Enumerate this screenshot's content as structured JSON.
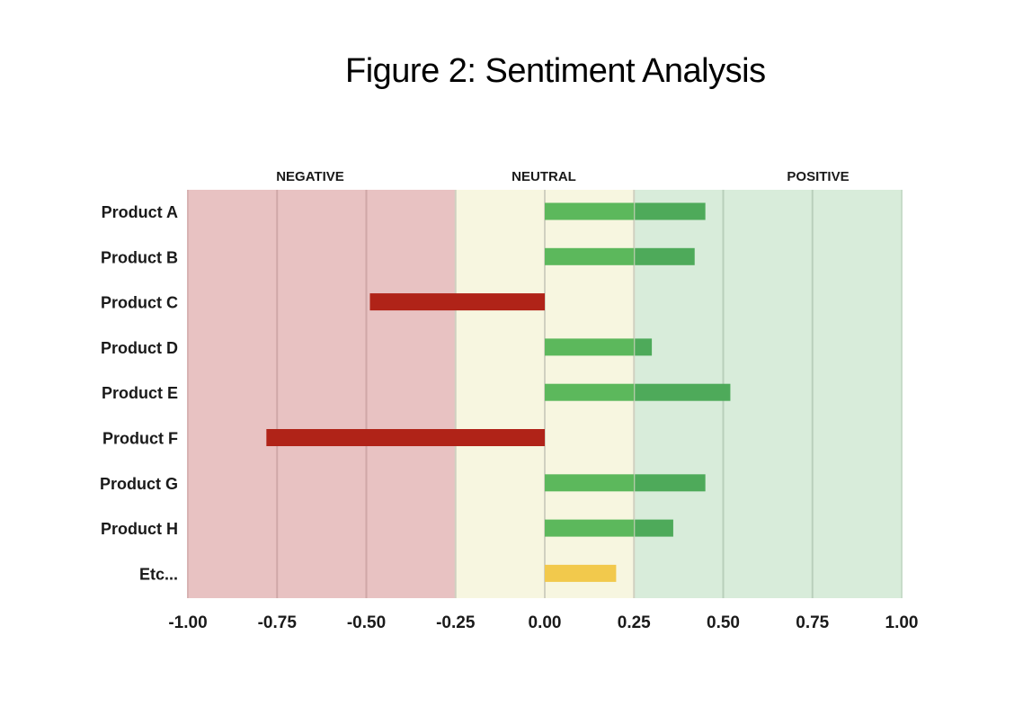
{
  "title": "Figure 2: Sentiment Analysis",
  "chart_data": {
    "type": "bar",
    "orientation": "horizontal",
    "title": "Figure 2: Sentiment Analysis",
    "xlabel": "",
    "ylabel": "",
    "xlim": [
      -1.0,
      1.0
    ],
    "x_ticks": [
      "-1.00",
      "-0.75",
      "-0.50",
      "-0.25",
      "0.00",
      "0.25",
      "0.50",
      "0.75",
      "1.00"
    ],
    "x_tick_values": [
      -1.0,
      -0.75,
      -0.5,
      -0.25,
      0.0,
      0.25,
      0.5,
      0.75,
      1.0
    ],
    "regions": [
      {
        "label": "NEGATIVE",
        "from": -1.0,
        "to": -0.25,
        "color": "#e8c2c2"
      },
      {
        "label": "NEUTRAL",
        "from": -0.25,
        "to": 0.25,
        "color": "#f7f6e0"
      },
      {
        "label": "POSITIVE",
        "from": 0.25,
        "to": 1.0,
        "color": "#d8ecda"
      }
    ],
    "categories": [
      "Product A",
      "Product B",
      "Product C",
      "Product D",
      "Product E",
      "Product F",
      "Product G",
      "Product H",
      "Etc..."
    ],
    "values": [
      0.45,
      0.42,
      -0.49,
      0.3,
      0.52,
      -0.78,
      0.45,
      0.36,
      0.2
    ],
    "colors": {
      "positive": "#5cb85c",
      "positive_right": "#4eaa5a",
      "negative": "#b02318",
      "neutral": "#f2c94c"
    },
    "bar_colors": [
      "positive",
      "positive",
      "negative",
      "positive",
      "positive",
      "negative",
      "positive",
      "positive",
      "neutral"
    ],
    "grid": true
  }
}
